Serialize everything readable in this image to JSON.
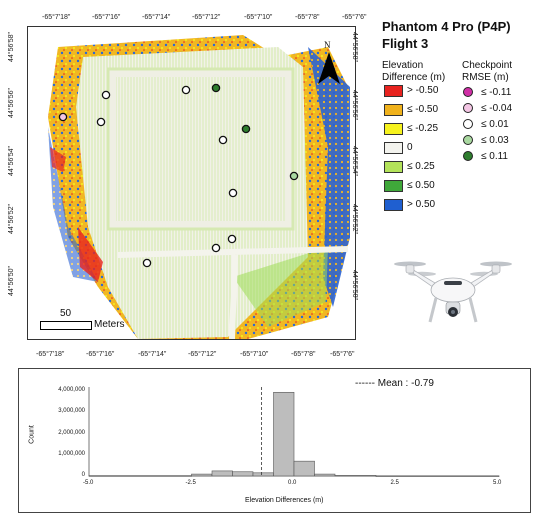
{
  "title": {
    "line1": "Phantom 4 Pro (P4P)",
    "line2": "Flight 3"
  },
  "north_label": "N",
  "scale_bar": {
    "value_label": "50",
    "unit_label": "Meters"
  },
  "top_ticks": [
    "-65°7'18\"",
    "-65°7'16\"",
    "-65°7'14\"",
    "-65°7'12\"",
    "-65°7'10\"",
    "-65°7'8\"",
    "-65°7'6\""
  ],
  "bottom_ticks": [
    "-65°7'18\"",
    "-65°7'16\"",
    "-65°7'14\"",
    "-65°7'12\"",
    "-65°7'10\"",
    "-65°7'8\"",
    "-65°7'6\""
  ],
  "left_ticks": [
    "44°56'58\"",
    "44°56'56\"",
    "44°56'54\"",
    "44°56'52\"",
    "44°56'50\""
  ],
  "right_ticks": [
    "44°56'58\"",
    "44°56'56\"",
    "44°56'54\"",
    "44°56'52\"",
    "44°56'50\""
  ],
  "elevation_legend": {
    "heading": "Elevation\nDifference (m)",
    "items": [
      {
        "label": "> -0.50",
        "color": "#e8231f"
      },
      {
        "label": "≤ -0.50",
        "color": "#f0b21c"
      },
      {
        "label": "≤ -0.25",
        "color": "#f6f21e"
      },
      {
        "label": "0",
        "color": "#f3f3ee"
      },
      {
        "label": "≤ 0.25",
        "color": "#b3e35a"
      },
      {
        "label": "≤ 0.50",
        "color": "#3fa83a"
      },
      {
        "label": "> 0.50",
        "color": "#1f5fd0"
      }
    ]
  },
  "checkpoint_legend": {
    "heading": "Checkpoint\nRMSE (m)",
    "items": [
      {
        "label": "≤ -0.11",
        "color": "#d02fa6"
      },
      {
        "label": "≤ -0.04",
        "color": "#f3c6e4"
      },
      {
        "label": "≤ 0.01",
        "color": "#ffffff"
      },
      {
        "label": "≤ 0.03",
        "color": "#a9d8a0"
      },
      {
        "label": "≤ 0.11",
        "color": "#2e7d2e"
      }
    ]
  },
  "histogram": {
    "mean_label": "------ Mean : -0.79",
    "ylabel": "Count",
    "xlabel": "Elevation Differences (m)",
    "y_ticks": [
      "4,000,000",
      "3,000,000",
      "2,000,000",
      "1,000,000",
      "0"
    ],
    "x_ticks": [
      "-5.0",
      "-2.5",
      "0.0",
      "2.5",
      "5.0"
    ]
  },
  "chart_data": {
    "type": "bar",
    "title": "",
    "xlabel": "Elevation Differences (m)",
    "ylabel": "Count",
    "xlim": [
      -5.0,
      5.0
    ],
    "ylim": [
      0,
      4200000
    ],
    "mean": -0.79,
    "bins": [
      {
        "x0": -5.0,
        "x1": -2.5,
        "count": 20000
      },
      {
        "x0": -2.5,
        "x1": -2.0,
        "count": 90000
      },
      {
        "x0": -2.0,
        "x1": -1.5,
        "count": 240000
      },
      {
        "x0": -1.5,
        "x1": -1.0,
        "count": 200000
      },
      {
        "x0": -1.0,
        "x1": -0.5,
        "count": 150000
      },
      {
        "x0": -0.5,
        "x1": 0.0,
        "count": 3950000
      },
      {
        "x0": 0.0,
        "x1": 0.5,
        "count": 700000
      },
      {
        "x0": 0.5,
        "x1": 1.0,
        "count": 90000
      },
      {
        "x0": 1.0,
        "x1": 2.0,
        "count": 30000
      },
      {
        "x0": 2.0,
        "x1": 5.0,
        "count": 10000
      }
    ]
  }
}
